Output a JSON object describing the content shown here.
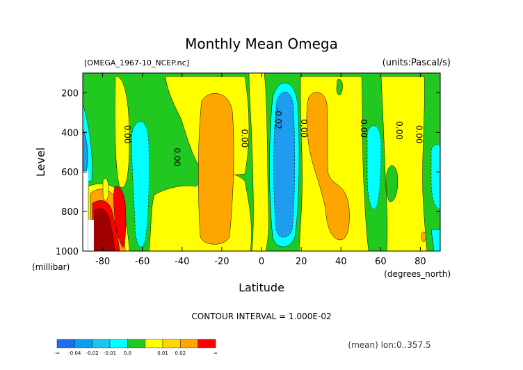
{
  "chart_data": {
    "type": "heatmap",
    "title": "Monthly Mean Omega",
    "file_label": "[OMEGA_1967-10_NCEP.nc]",
    "units_label": "(units:Pascal/s)",
    "xlabel": "Latitude",
    "x_units": "(degrees_north)",
    "ylabel": "Level",
    "y_units": "(millibar)",
    "xlim": [
      -90,
      90
    ],
    "ylim": [
      1000,
      100
    ],
    "x_ticks": [
      -80,
      -60,
      -40,
      -20,
      0,
      20,
      40,
      60,
      80
    ],
    "y_ticks": [
      200,
      400,
      600,
      800,
      1000
    ],
    "contour_interval_label": "CONTOUR INTERVAL = 1.000E-02",
    "mean_label": "(mean) lon:0..357.5",
    "contour_labels": [
      {
        "text": "0.00",
        "lat": -69,
        "level": 410
      },
      {
        "text": "0.00",
        "lat": -44,
        "level": 525
      },
      {
        "text": "0.00",
        "lat": -10,
        "level": 430
      },
      {
        "text": "-0.02",
        "lat": 7,
        "level": 330
      },
      {
        "text": "0.00",
        "lat": 20,
        "level": 380
      },
      {
        "text": "0.00",
        "lat": 50,
        "level": 380
      },
      {
        "text": "0.00",
        "lat": 68,
        "level": 390
      },
      {
        "text": "0.00",
        "lat": 78,
        "level": 410
      }
    ],
    "colorbar": {
      "colors": [
        "#1e6cf0",
        "#0a9ef0",
        "#1ec4f0",
        "#00ffff",
        "#20c820",
        "#ffff00",
        "#ffd700",
        "#ffa500",
        "#ff0000"
      ],
      "labels": [
        "-∞",
        "-0.04",
        "-0.02",
        "-0.01",
        "0.0",
        "0.01",
        "0.02",
        "∞"
      ]
    }
  }
}
